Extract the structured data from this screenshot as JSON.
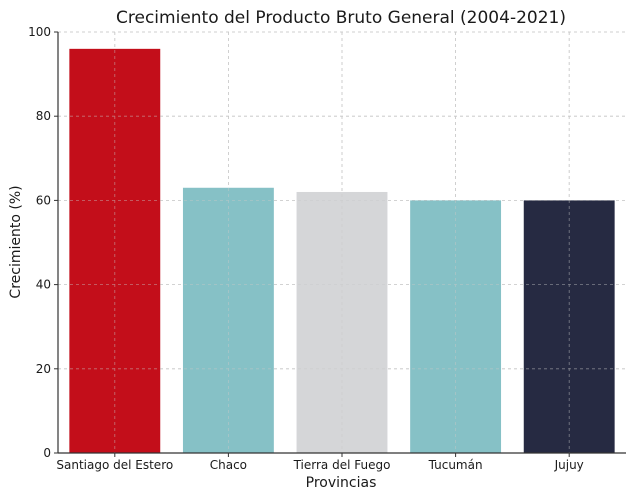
{
  "chart_data": {
    "type": "bar",
    "title": "Crecimiento del Producto Bruto General (2004-2021)",
    "xlabel": "Provincias",
    "ylabel": "Crecimiento (%)",
    "categories": [
      "Santiago del Estero",
      "Chaco",
      "Tierra del Fuego",
      "Tucumán",
      "Jujuy"
    ],
    "values": [
      96,
      63,
      62,
      60,
      60
    ],
    "colors": [
      "#c30e1a",
      "#86c1c6",
      "#d5d6d8",
      "#86c1c6",
      "#262a42"
    ],
    "ylim": [
      0,
      100
    ],
    "yticks": [
      0,
      20,
      40,
      60,
      80,
      100
    ],
    "grid": true
  }
}
